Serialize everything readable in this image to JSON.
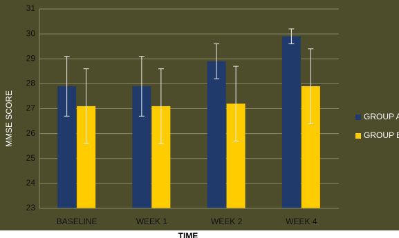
{
  "chart_data": {
    "type": "bar",
    "x_label": "TIME",
    "y_label": "MMSE SCORE",
    "categories": [
      "BASELINE",
      "WEEK 1",
      "WEEK 2",
      "WEEK 4"
    ],
    "series": [
      {
        "name": "GROUP A",
        "color": "#1f3a6b",
        "values": [
          27.9,
          27.9,
          28.9,
          29.9
        ],
        "errors": [
          1.2,
          1.2,
          0.7,
          0.3
        ]
      },
      {
        "name": "GROUP B",
        "color": "#ffcc00",
        "values": [
          27.1,
          27.1,
          27.2,
          27.9
        ],
        "errors": [
          1.5,
          1.5,
          1.5,
          1.5
        ]
      }
    ],
    "ylim": [
      23,
      31
    ],
    "yticks": [
      23,
      24,
      25,
      26,
      27,
      28,
      29,
      30,
      31
    ],
    "grid": true,
    "legend": "right"
  }
}
